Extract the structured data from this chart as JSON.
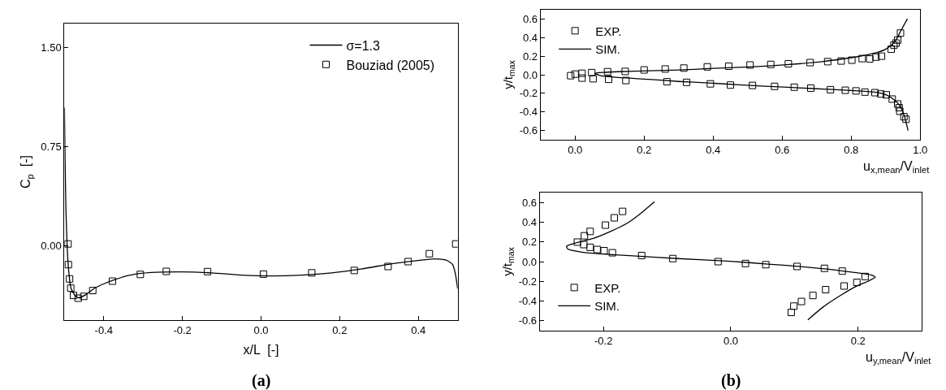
{
  "chart_data": [
    {
      "type": "scatter",
      "xlabel": "x/L  [-]",
      "ylabel": "C$_{p}$  [-]",
      "xlim": [
        -0.5,
        0.5
      ],
      "ylim": [
        -0.565,
        1.68
      ],
      "xticks": [
        {
          "value": -0.4,
          "label": "-0.4"
        },
        {
          "value": -0.2,
          "label": "-0.2"
        },
        {
          "value": 0,
          "label": "0.0"
        },
        {
          "value": 0.2,
          "label": "0.2"
        },
        {
          "value": 0.4,
          "label": "0.4"
        }
      ],
      "yticks": [
        {
          "value": 0,
          "label": "0.00"
        },
        {
          "value": 0.75,
          "label": "0.75"
        },
        {
          "value": 1.5,
          "label": "1.50"
        }
      ],
      "legend": "top right",
      "grid": false,
      "annotations": [
        "(a)"
      ],
      "series": [
        {
          "name": "σ=1.3",
          "type": "line",
          "color": "#000000",
          "marker": "none",
          "line_style": "solid",
          "x": [
            -0.5,
            -0.496,
            -0.49,
            -0.483,
            -0.471,
            -0.462,
            -0.444,
            -0.425,
            -0.402,
            -0.372,
            -0.333,
            -0.28,
            -0.203,
            -0.126,
            -0.05,
            0.027,
            0.103,
            0.18,
            0.257,
            0.333,
            0.395,
            0.441,
            0.471,
            0.487,
            0.494,
            0.5
          ],
          "values": [
            1.044,
            0.249,
            -0.166,
            -0.327,
            -0.385,
            -0.396,
            -0.369,
            -0.327,
            -0.293,
            -0.258,
            -0.224,
            -0.205,
            -0.2,
            -0.207,
            -0.224,
            -0.23,
            -0.224,
            -0.207,
            -0.177,
            -0.138,
            -0.115,
            -0.101,
            -0.111,
            -0.143,
            -0.212,
            -0.327
          ]
        },
        {
          "name": "Bouziad (2005)",
          "color": "#000000",
          "marker": "square",
          "x": [
            -0.491,
            -0.49,
            -0.487,
            -0.484,
            -0.477,
            -0.465,
            -0.451,
            -0.428,
            -0.378,
            -0.307,
            -0.241,
            -0.136,
            0.006,
            0.129,
            0.237,
            0.323,
            0.374,
            0.428,
            0.495
          ],
          "values": [
            0.012,
            -0.145,
            -0.253,
            -0.323,
            -0.378,
            -0.399,
            -0.385,
            -0.341,
            -0.27,
            -0.219,
            -0.196,
            -0.198,
            -0.217,
            -0.207,
            -0.189,
            -0.159,
            -0.122,
            -0.062,
            0.012
          ]
        }
      ]
    },
    {
      "type": "scatter",
      "xlabel": "u$_{x,mean}$/V$_{inlet}$",
      "ylabel": "y/t$_{max}$",
      "xlim": [
        -0.1,
        1.0
      ],
      "ylim": [
        -0.7,
        0.7
      ],
      "xticks": [
        {
          "value": 0,
          "label": "0.0"
        },
        {
          "value": 0.2,
          "label": "0.2"
        },
        {
          "value": 0.4,
          "label": "0.4"
        },
        {
          "value": 0.6,
          "label": "0.6"
        },
        {
          "value": 0.8,
          "label": "0.8"
        },
        {
          "value": 1.0,
          "label": "1.0"
        }
      ],
      "yticks": [
        {
          "value": -0.6,
          "label": "-0.6"
        },
        {
          "value": -0.4,
          "label": "-0.4"
        },
        {
          "value": -0.2,
          "label": "-0.2"
        },
        {
          "value": 0,
          "label": "0.0"
        },
        {
          "value": 0.2,
          "label": "0.2"
        },
        {
          "value": 0.4,
          "label": "0.4"
        },
        {
          "value": 0.6,
          "label": "0.6"
        }
      ],
      "legend": "top left",
      "grid": false,
      "series": [
        {
          "name": "EXP.",
          "color": "#000000",
          "marker": "square",
          "x": [
            -0.013,
            0.0,
            0.02,
            0.02,
            0.048,
            0.052,
            0.094,
            0.097,
            0.145,
            0.147,
            0.2,
            0.261,
            0.266,
            0.315,
            0.323,
            0.383,
            0.392,
            0.445,
            0.45,
            0.507,
            0.514,
            0.567,
            0.578,
            0.618,
            0.635,
            0.681,
            0.683,
            0.732,
            0.74,
            0.771,
            0.783,
            0.802,
            0.814,
            0.832,
            0.84,
            0.854,
            0.869,
            0.872,
            0.888,
            0.886,
            0.902,
            0.916,
            0.919,
            0.924,
            0.93,
            0.935,
            0.935,
            0.939,
            0.943,
            0.941,
            0.953,
            0.959
          ],
          "values": [
            -0.01,
            0.007,
            0.016,
            -0.036,
            0.023,
            -0.043,
            0.033,
            -0.049,
            0.036,
            -0.062,
            0.052,
            0.062,
            -0.075,
            0.072,
            -0.082,
            0.085,
            -0.098,
            0.092,
            -0.111,
            0.105,
            -0.115,
            0.111,
            -0.125,
            0.118,
            -0.134,
            0.131,
            -0.144,
            0.141,
            -0.161,
            0.148,
            -0.167,
            0.157,
            -0.174,
            0.174,
            -0.187,
            0.17,
            -0.193,
            0.19,
            0.2,
            -0.207,
            -0.216,
            0.275,
            -0.262,
            0.318,
            0.341,
            0.374,
            -0.315,
            -0.354,
            0.449,
            -0.393,
            -0.452,
            -0.479
          ]
        },
        {
          "name": "SIM.",
          "type": "line",
          "color": "#000000",
          "marker": "none",
          "line_style": "solid",
          "x": [
            0.963,
            0.943,
            0.926,
            0.9,
            0.865,
            0.822,
            0.735,
            0.648,
            0.561,
            0.474,
            0.387,
            0.3,
            0.213,
            0.126,
            0.083,
            0.057,
            0.074,
            0.126,
            0.213,
            0.3,
            0.387,
            0.474,
            0.561,
            0.648,
            0.735,
            0.822,
            0.874,
            0.909,
            0.935,
            0.952,
            0.965
          ],
          "values": [
            0.603,
            0.466,
            0.351,
            0.275,
            0.23,
            0.197,
            0.151,
            0.118,
            0.095,
            0.079,
            0.066,
            0.052,
            0.043,
            0.033,
            0.026,
            0.016,
            -0.01,
            -0.03,
            -0.049,
            -0.072,
            -0.089,
            -0.108,
            -0.125,
            -0.141,
            -0.157,
            -0.174,
            -0.19,
            -0.23,
            -0.305,
            -0.42,
            -0.6
          ]
        }
      ]
    },
    {
      "type": "scatter",
      "xlabel": "u$_{y,mean}$/V$_{inlet}$",
      "ylabel": "y/t$_{max}$",
      "xlim": [
        -0.3,
        0.3
      ],
      "ylim": [
        -0.7,
        0.7
      ],
      "xticks": [
        {
          "value": -0.2,
          "label": "-0.2"
        },
        {
          "value": 0,
          "label": "0.0"
        },
        {
          "value": 0.2,
          "label": "0.2"
        }
      ],
      "yticks": [
        {
          "value": -0.6,
          "label": "-0.6"
        },
        {
          "value": -0.4,
          "label": "-0.4"
        },
        {
          "value": -0.2,
          "label": "-0.2"
        },
        {
          "value": 0,
          "label": "0.0"
        },
        {
          "value": 0.2,
          "label": "0.2"
        },
        {
          "value": 0.4,
          "label": "0.4"
        },
        {
          "value": 0.6,
          "label": "0.6"
        }
      ],
      "legend": "bottom left",
      "grid": false,
      "annotations": [
        "(b)"
      ],
      "series": [
        {
          "name": "EXP.",
          "color": "#000000",
          "marker": "square",
          "x": [
            -0.17,
            -0.183,
            -0.197,
            -0.221,
            -0.23,
            -0.241,
            -0.231,
            -0.221,
            -0.21,
            -0.199,
            -0.186,
            -0.14,
            -0.091,
            -0.02,
            0.023,
            0.055,
            0.104,
            0.147,
            0.175,
            0.211,
            0.198,
            0.178,
            0.149,
            0.129,
            0.111,
            0.099,
            0.095
          ],
          "values": [
            0.509,
            0.444,
            0.37,
            0.306,
            0.262,
            0.198,
            0.173,
            0.145,
            0.123,
            0.111,
            0.09,
            0.062,
            0.031,
            0.0,
            -0.019,
            -0.031,
            -0.049,
            -0.068,
            -0.096,
            -0.151,
            -0.21,
            -0.247,
            -0.284,
            -0.343,
            -0.404,
            -0.451,
            -0.515
          ]
        },
        {
          "name": "SIM.",
          "type": "line",
          "color": "#000000",
          "marker": "none",
          "line_style": "solid",
          "x": [
            -0.12,
            -0.14,
            -0.163,
            -0.187,
            -0.216,
            -0.244,
            -0.258,
            -0.256,
            -0.234,
            -0.201,
            -0.154,
            -0.083,
            0.0,
            0.059,
            0.107,
            0.154,
            0.192,
            0.221,
            0.227,
            0.216,
            0.197,
            0.174,
            0.145,
            0.121
          ],
          "values": [
            0.608,
            0.497,
            0.389,
            0.312,
            0.235,
            0.188,
            0.157,
            0.127,
            0.096,
            0.077,
            0.059,
            0.031,
            0.003,
            -0.025,
            -0.049,
            -0.077,
            -0.108,
            -0.136,
            -0.157,
            -0.198,
            -0.25,
            -0.336,
            -0.46,
            -0.59
          ]
        }
      ]
    }
  ]
}
